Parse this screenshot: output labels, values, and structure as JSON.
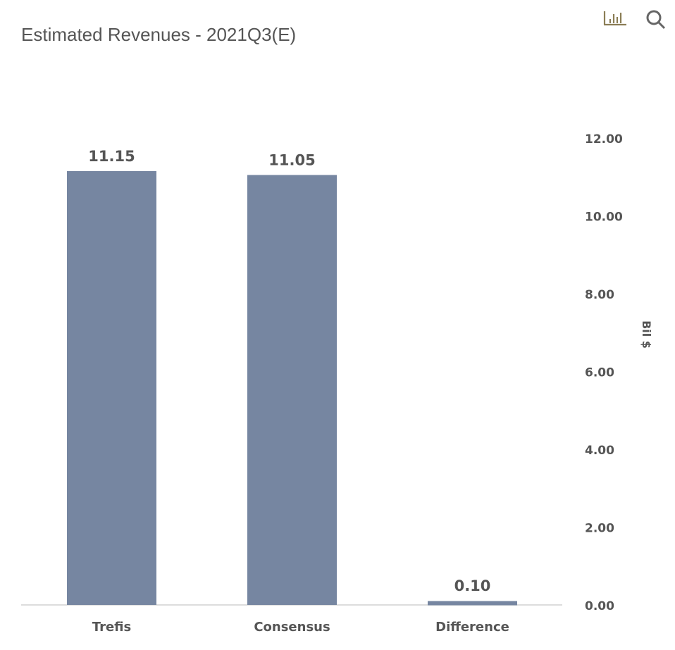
{
  "header": {
    "title": "Estimated Revenues - 2021Q3(E)",
    "icons": [
      "bar-chart-icon",
      "search-icon"
    ]
  },
  "colors": {
    "bar": "#7686a1",
    "text": "#555555",
    "axis": "#dddddd"
  },
  "chart_data": {
    "type": "bar",
    "title": "Estimated Revenues - 2021Q3(E)",
    "categories": [
      "Trefis",
      "Consensus",
      "Difference"
    ],
    "values": [
      11.15,
      11.05,
      0.1
    ],
    "value_labels": [
      "11.15",
      "11.05",
      "0.10"
    ],
    "ylabel": "Bil $",
    "ylim": [
      0,
      12
    ],
    "yticks": [
      "0.00",
      "2.00",
      "4.00",
      "6.00",
      "8.00",
      "10.00",
      "12.00"
    ],
    "y_axis_position": "right",
    "grid": false
  }
}
